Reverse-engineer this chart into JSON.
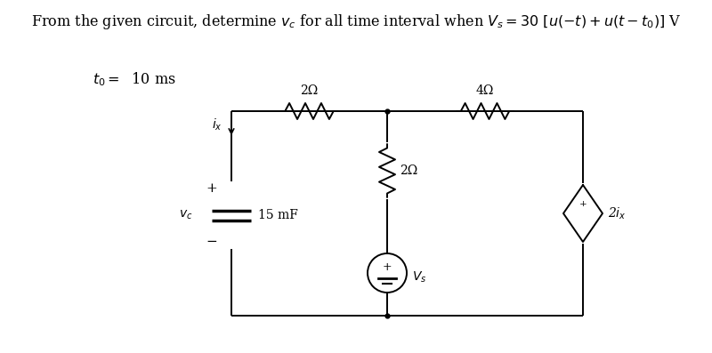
{
  "background_color": "#ffffff",
  "line_color": "#000000",
  "title": "From the given circuit, determine $v_c$ for all time interval when $V_s = 30\\ [u(-t) + u(t - t_0)]$ V",
  "t0_label": "$t_0 =\\;$ 10 ms",
  "res2_top_label": "2Ω",
  "res4_label": "4Ω",
  "res2_mid_label": "2Ω",
  "cap_label": "15 mF",
  "dep_label": "2$i_x$",
  "vs_label": "$V_s$",
  "ix_label": "$i_x$",
  "vc_label": "$v_c$"
}
